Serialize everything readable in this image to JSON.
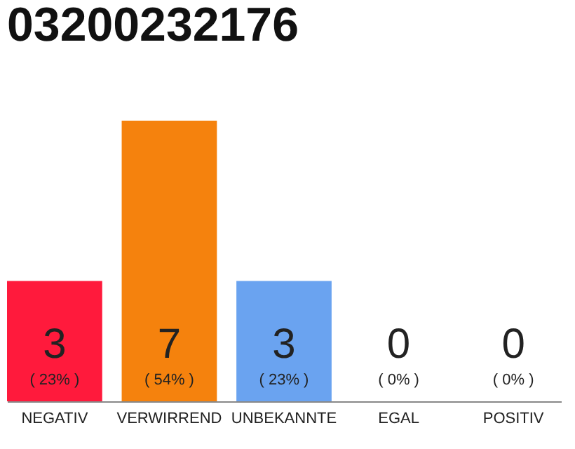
{
  "chart_data": {
    "type": "bar",
    "title": "03200232176",
    "categories": [
      "NEGATIV",
      "VERWIRREND",
      "UNBEKANNTE",
      "EGAL",
      "POSITIV"
    ],
    "values": [
      3,
      7,
      3,
      0,
      0
    ],
    "colors": [
      "#ff1a3c",
      "#f5820d",
      "#6aa3f0",
      "#d0d0d0",
      "#d0d0d0"
    ],
    "data_labels": true,
    "annotations": [
      "( 23% )",
      "( 54% )",
      "( 23% )",
      "( 0% )",
      "( 0% )"
    ],
    "grid": false
  }
}
